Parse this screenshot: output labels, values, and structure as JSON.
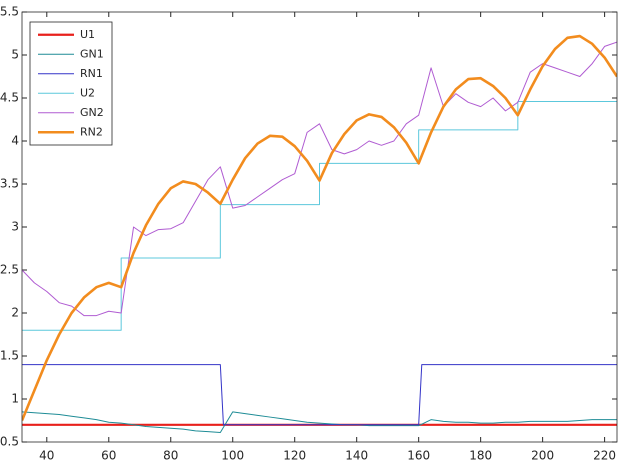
{
  "chart_data": {
    "type": "line",
    "x": [
      32,
      36,
      40,
      44,
      48,
      52,
      56,
      60,
      64,
      68,
      72,
      76,
      80,
      84,
      88,
      92,
      96,
      100,
      104,
      108,
      112,
      116,
      120,
      124,
      128,
      132,
      136,
      140,
      144,
      148,
      152,
      156,
      160,
      164,
      168,
      172,
      176,
      180,
      184,
      188,
      192,
      196,
      200,
      204,
      208,
      212,
      216,
      220,
      224
    ],
    "xlim": [
      32,
      224
    ],
    "ylim": [
      0.5,
      5.5
    ],
    "xticks": [
      40,
      60,
      80,
      100,
      120,
      140,
      160,
      180,
      200,
      220
    ],
    "yticks": [
      0.5,
      1,
      1.5,
      2,
      2.5,
      3,
      3.5,
      4,
      4.5,
      5,
      5.5
    ],
    "grid": false,
    "legend": "top-left",
    "series": [
      {
        "name": "U1",
        "color": "#e8201c",
        "width": 2.2,
        "x": [
          32,
          224
        ],
        "values": [
          0.7,
          0.7
        ]
      },
      {
        "name": "GN1",
        "color": "#1e8c96",
        "width": 1,
        "values": [
          0.85,
          0.84,
          0.83,
          0.82,
          0.8,
          0.78,
          0.76,
          0.73,
          0.72,
          0.7,
          0.68,
          0.67,
          0.66,
          0.65,
          0.63,
          0.62,
          0.61,
          0.85,
          0.83,
          0.81,
          0.79,
          0.77,
          0.75,
          0.73,
          0.72,
          0.71,
          0.7,
          0.7,
          0.69,
          0.69,
          0.69,
          0.69,
          0.69,
          0.76,
          0.74,
          0.73,
          0.73,
          0.72,
          0.72,
          0.73,
          0.73,
          0.74,
          0.74,
          0.74,
          0.74,
          0.75,
          0.76,
          0.76,
          0.76
        ]
      },
      {
        "name": "RN1",
        "color": "#3434c8",
        "width": 1,
        "x": [
          32,
          96,
          97,
          160,
          161,
          224
        ],
        "values": [
          1.4,
          1.4,
          0.7,
          0.7,
          1.4,
          1.4
        ]
      },
      {
        "name": "U2",
        "color": "#5cc8dc",
        "width": 1,
        "x": [
          32,
          64,
          64,
          96,
          96,
          128,
          128,
          160,
          160,
          192,
          192,
          224
        ],
        "values": [
          1.8,
          1.8,
          2.64,
          2.64,
          3.26,
          3.26,
          3.74,
          3.74,
          4.13,
          4.13,
          4.46,
          4.46
        ]
      },
      {
        "name": "GN2",
        "color": "#b05cd2",
        "width": 1,
        "values": [
          2.5,
          2.35,
          2.25,
          2.12,
          2.08,
          1.97,
          1.97,
          2.02,
          2.0,
          3.0,
          2.9,
          2.97,
          2.98,
          3.05,
          3.3,
          3.55,
          3.7,
          3.22,
          3.25,
          3.35,
          3.45,
          3.55,
          3.62,
          4.1,
          4.2,
          3.9,
          3.85,
          3.9,
          4.0,
          3.95,
          4.0,
          4.2,
          4.3,
          4.85,
          4.4,
          4.55,
          4.45,
          4.4,
          4.5,
          4.35,
          4.45,
          4.8,
          4.9,
          4.85,
          4.8,
          4.75,
          4.9,
          5.1,
          5.15
        ]
      },
      {
        "name": "RN2",
        "color": "#f28c1e",
        "width": 2.6,
        "values": [
          0.75,
          1.1,
          1.45,
          1.75,
          2.0,
          2.18,
          2.3,
          2.35,
          2.3,
          2.7,
          3.02,
          3.27,
          3.45,
          3.53,
          3.5,
          3.4,
          3.27,
          3.55,
          3.8,
          3.97,
          4.06,
          4.05,
          3.94,
          3.77,
          3.54,
          3.86,
          4.08,
          4.24,
          4.31,
          4.28,
          4.16,
          3.98,
          3.74,
          4.1,
          4.4,
          4.6,
          4.72,
          4.73,
          4.64,
          4.5,
          4.3,
          4.6,
          4.87,
          5.07,
          5.2,
          5.22,
          5.13,
          4.97,
          4.75
        ]
      }
    ]
  }
}
